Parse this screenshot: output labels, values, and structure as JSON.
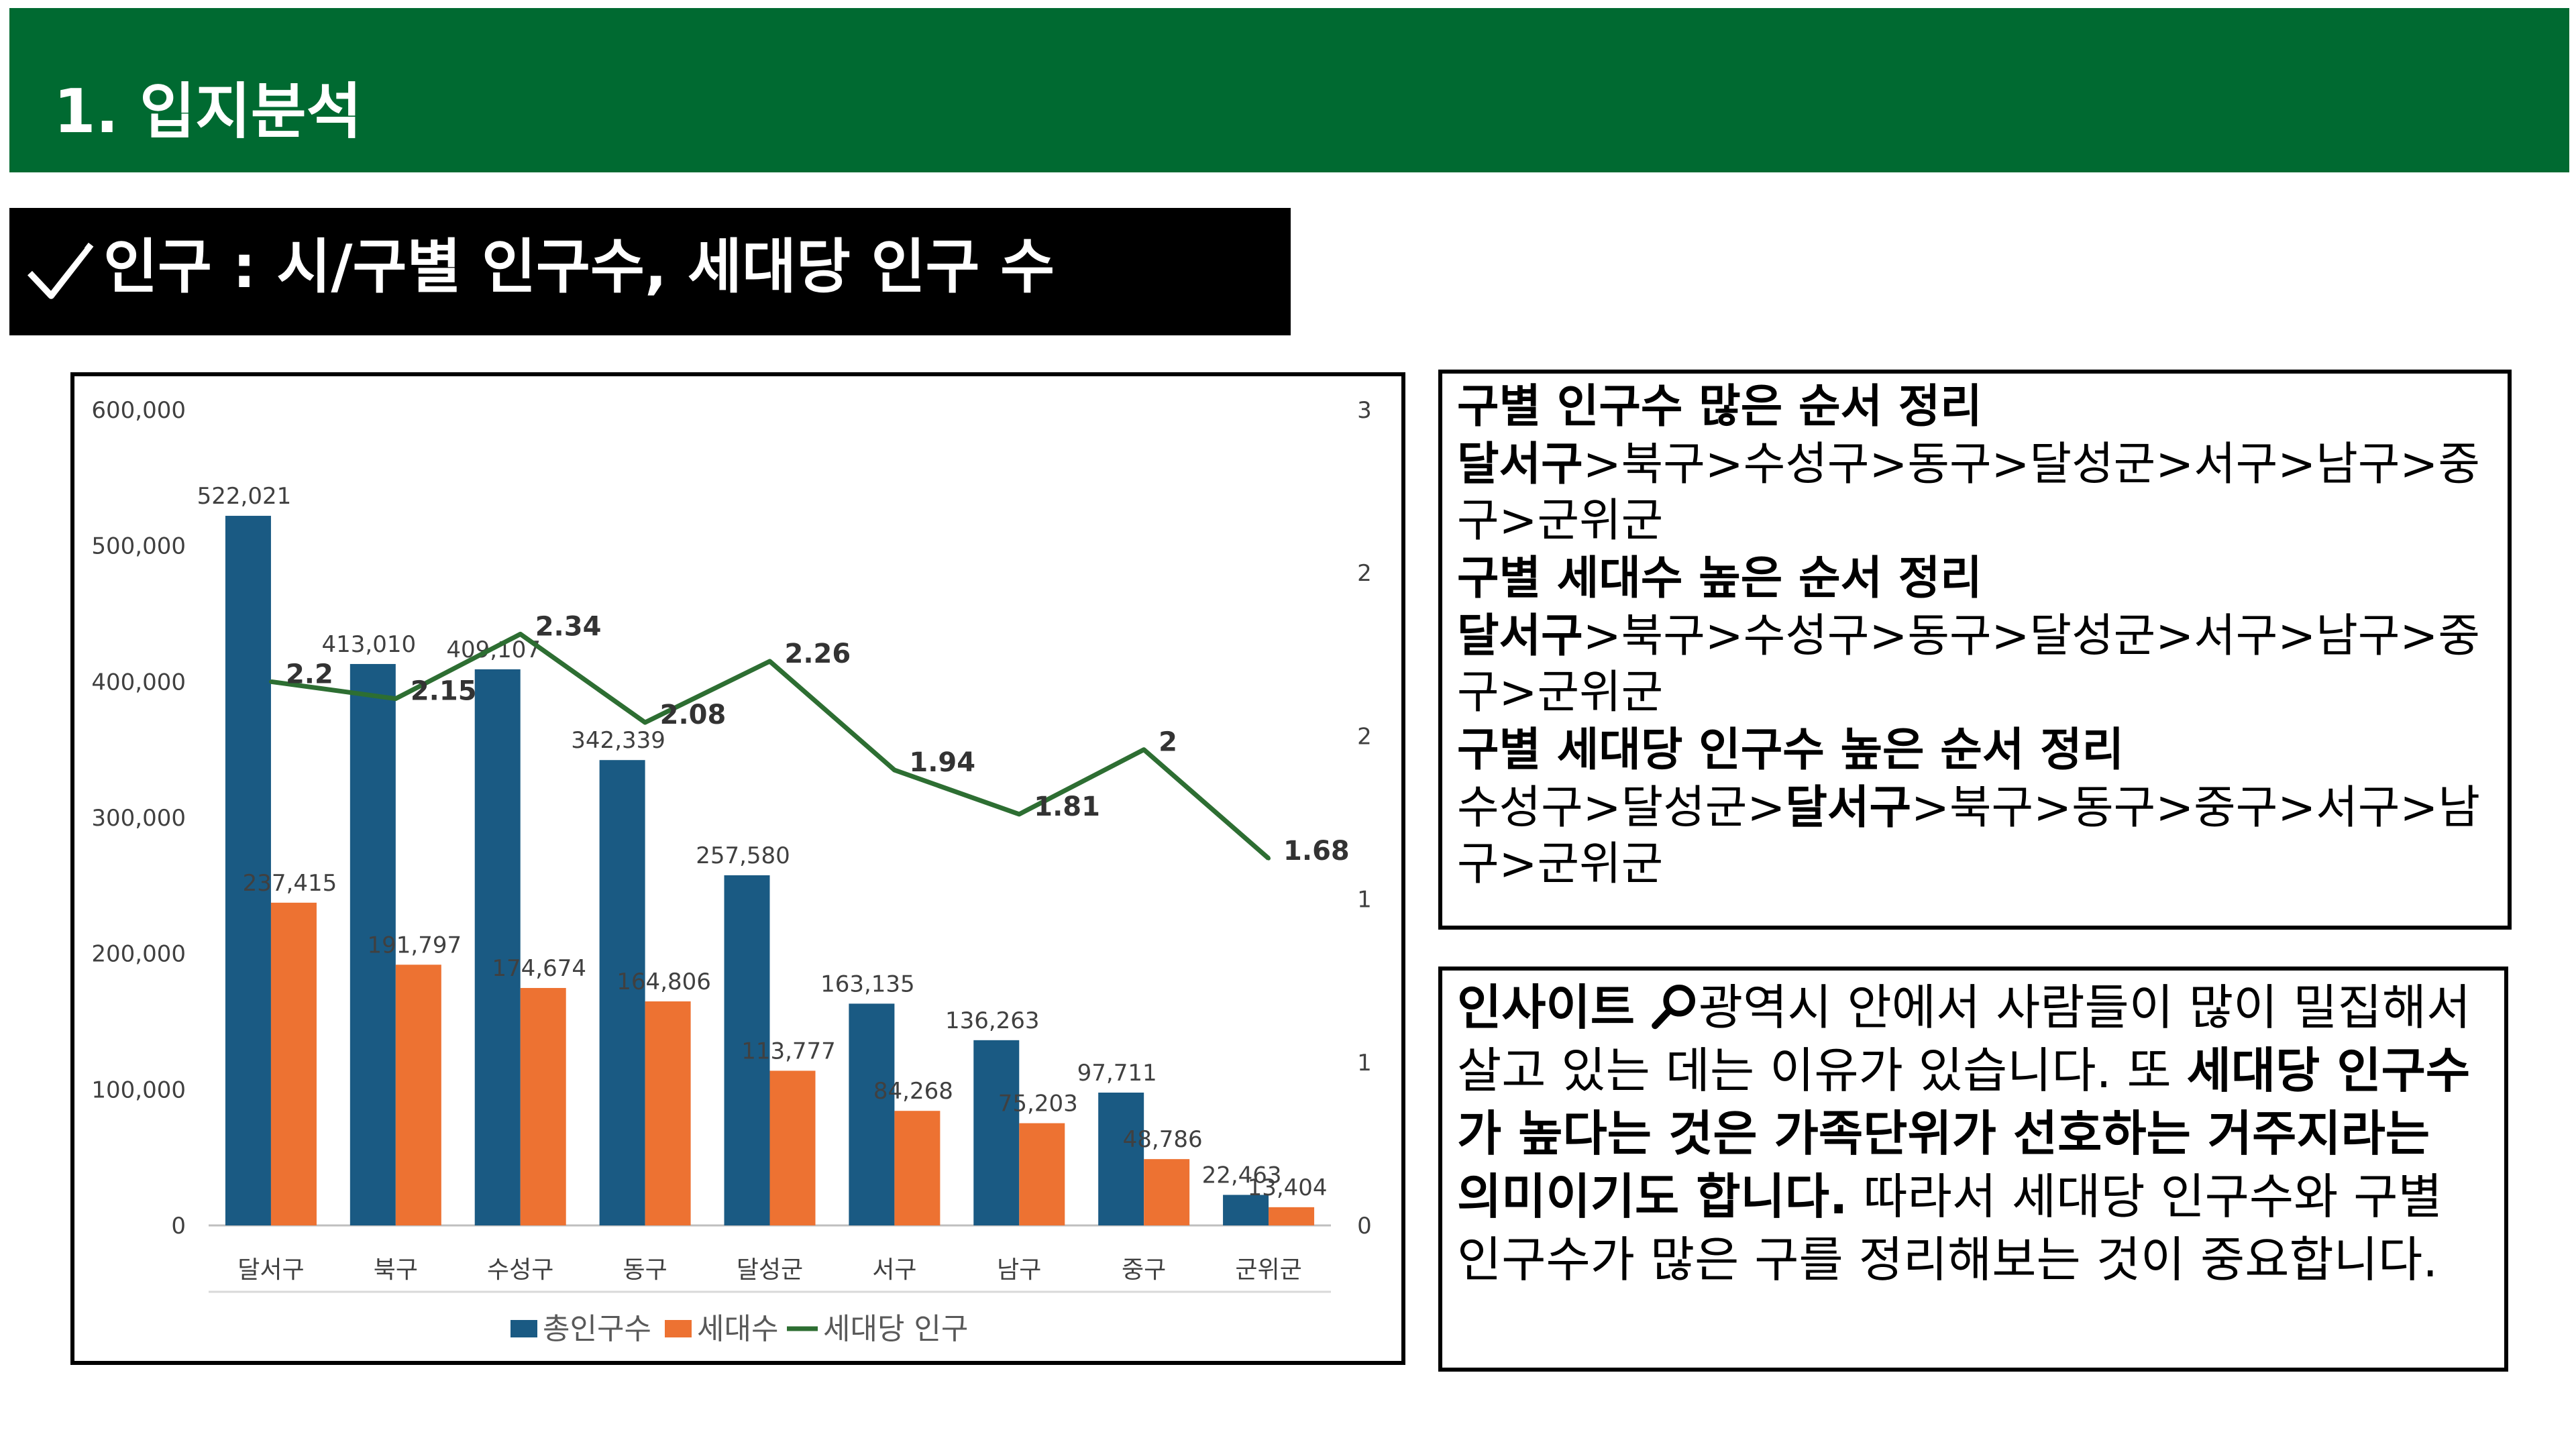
{
  "header": {
    "section_title": "1. 입지분석"
  },
  "subheader": {
    "title": "인구 : 시/구별 인구수, 세대당 인구 수",
    "check_icon": "checkmark-icon"
  },
  "colors": {
    "banner": "#006a31",
    "population": "#1a5a83",
    "households": "#ed7232",
    "per_household": "#2d6e32"
  },
  "chart_data": {
    "type": "bar",
    "categories": [
      "달서구",
      "북구",
      "수성구",
      "동구",
      "달성군",
      "서구",
      "남구",
      "중구",
      "군위군"
    ],
    "series": [
      {
        "name": "총인구수",
        "type": "bar",
        "axis": "left",
        "values": [
          522021,
          413010,
          409107,
          342339,
          257580,
          163135,
          136263,
          97711,
          22463
        ],
        "labels": [
          "522,021",
          "413,010",
          "409,107",
          "342,339",
          "257,580",
          "163,135",
          "136,263",
          "97,711",
          "22,463"
        ]
      },
      {
        "name": "세대수",
        "type": "bar",
        "axis": "left",
        "values": [
          237415,
          191797,
          174674,
          164806,
          113777,
          84268,
          75203,
          48786,
          13404
        ],
        "labels": [
          "237,415",
          "191,797",
          "174,674",
          "164,806",
          "113,777",
          "84,268",
          "75,203",
          "48,786",
          "13,404"
        ]
      },
      {
        "name": "세대당 인구",
        "type": "line",
        "axis": "right",
        "values": [
          2.2,
          2.15,
          2.34,
          2.08,
          2.26,
          1.94,
          1.81,
          2,
          1.68
        ],
        "labels": [
          "2.2",
          "2.15",
          "2.34",
          "2.08",
          "2.26",
          "1.94",
          "1.81",
          "2",
          "1.68"
        ]
      }
    ],
    "left_axis": {
      "ylim": [
        0,
        600000
      ],
      "ticks": [
        "0",
        "100,000",
        "200,000",
        "300,000",
        "400,000",
        "500,000",
        "600,000"
      ]
    },
    "right_axis": {
      "ylim": [
        0.6,
        3
      ],
      "ticks": [
        "0",
        "1",
        "1",
        "2",
        "2",
        "3"
      ]
    },
    "legend": {
      "position": "bottom",
      "items": [
        "총인구수",
        "세대수",
        "세대당 인구"
      ]
    },
    "grid": false
  },
  "ranking": {
    "pop_title": "구별 인구수 많은 순서 정리",
    "pop_first": "달서구",
    "pop_rest": ">북구>수성구>동구>달성군>서구>남구>중구>군위군",
    "hh_title": "구별 세대수 높은 순서 정리",
    "hh_first": "달서구",
    "hh_rest": ">북구>수성구>동구>달성군>서구>남구>중구>군위군",
    "per_title": "구별 세대당 인구수 높은 순서 정리",
    "per_before": "수성구>달성군>",
    "per_bold": "달서구",
    "per_after": ">북구>동구>중구>서구>남구>군위군"
  },
  "insight": {
    "label": "인사이트",
    "icon": "magnifier-icon",
    "text1": "광역시 안에서 사람들이 많이 밀집해서 살고 있는 데는 이유가 있습니다. 또 ",
    "bold": "세대당 인구수가 높다는 것은 가족단위가 선호하는 거주지라는 의미이기도 합니다.",
    "text2": " 따라서 세대당 인구수와 구별 인구수가 많은 구를 정리해보는 것이 중요합니다."
  }
}
